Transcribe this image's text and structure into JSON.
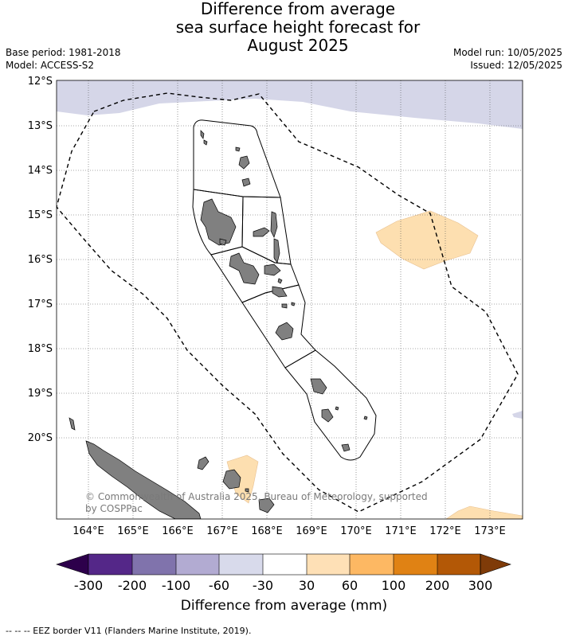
{
  "title": {
    "line1": "Difference from average",
    "line2": "sea surface height forecast for",
    "line3": "August 2025"
  },
  "meta": {
    "base_period": "Base period: 1981-2018",
    "model": "Model: ACCESS-S2",
    "model_run": "Model run: 10/05/2025",
    "issued": "Issued: 12/05/2025"
  },
  "map": {
    "lat_labels": [
      "12°S",
      "13°S",
      "14°S",
      "15°S",
      "16°S",
      "17°S",
      "18°S",
      "19°S",
      "20°S"
    ],
    "lon_labels": [
      "164°E",
      "165°E",
      "166°E",
      "167°E",
      "168°E",
      "169°E",
      "170°E",
      "171°E",
      "172°E",
      "173°E"
    ],
    "copyright_line1": "© Commonwealth of Australia 2025, Bureau of Meteorology, supported",
    "copyright_line2": "by COSPPac",
    "land_color": "#808080",
    "anomaly_regions": [
      {
        "name": "north-band",
        "class": "-60 to -30",
        "color": "#d5d6e8"
      },
      {
        "name": "east-patch",
        "class": "30 to 60",
        "color": "#fddfb0"
      },
      {
        "name": "south-patch",
        "class": "30 to 60",
        "color": "#fddfb0"
      },
      {
        "name": "southeast-patch",
        "class": "30 to 60",
        "color": "#fddfb0"
      }
    ]
  },
  "colorbar": {
    "label": "Difference from average (mm)",
    "ticks": [
      "-300",
      "-200",
      "-100",
      "-60",
      "-30",
      "30",
      "60",
      "100",
      "200",
      "300"
    ],
    "colors": [
      "#2d004b",
      "#542788",
      "#8073ac",
      "#b2abd2",
      "#d8daeb",
      "#ffffff",
      "#fee0b6",
      "#fdb863",
      "#e08214",
      "#b35806",
      "#7f3b08"
    ]
  },
  "footnote": "--  --  -- EEZ border V11 (Flanders Marine Institute, 2019)."
}
